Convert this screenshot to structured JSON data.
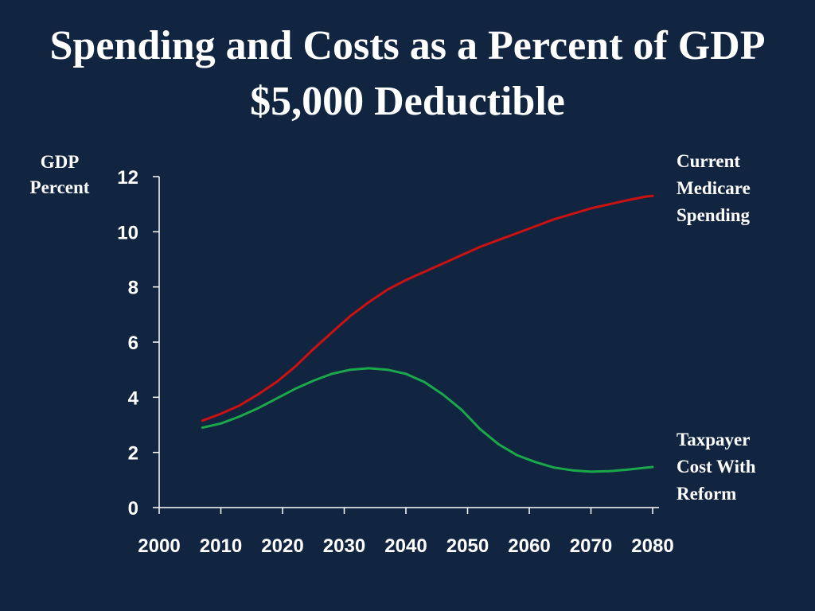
{
  "colors": {
    "background": "#112440",
    "axis": "#ffffff",
    "current": "#cc1111",
    "taxpayer": "#1aa84a"
  },
  "chart_data": {
    "type": "line",
    "title": "Spending and Costs as a Percent of GDP",
    "subtitle": "$5,000 Deductible",
    "ylabel_line1": "GDP",
    "ylabel_line2": "Percent",
    "xlabel": "",
    "xlim": [
      2000,
      2080
    ],
    "ylim": [
      0,
      12
    ],
    "x_ticks": [
      2000,
      2010,
      2020,
      2030,
      2040,
      2050,
      2060,
      2070,
      2080
    ],
    "y_ticks": [
      0,
      2,
      4,
      6,
      8,
      10,
      12
    ],
    "grid": false,
    "x": [
      2007,
      2010,
      2013,
      2016,
      2019,
      2022,
      2025,
      2028,
      2031,
      2034,
      2037,
      2040,
      2043,
      2046,
      2049,
      2052,
      2055,
      2058,
      2061,
      2064,
      2067,
      2070,
      2073,
      2076,
      2079,
      2080
    ],
    "series": [
      {
        "name": "Current Medicare Spending",
        "label_lines": [
          "Current",
          "Medicare",
          "Spending"
        ],
        "color": "#cc1111",
        "values": [
          3.15,
          3.4,
          3.7,
          4.1,
          4.55,
          5.1,
          5.75,
          6.35,
          6.95,
          7.45,
          7.9,
          8.25,
          8.55,
          8.85,
          9.15,
          9.45,
          9.7,
          9.95,
          10.2,
          10.45,
          10.65,
          10.85,
          11.0,
          11.15,
          11.28,
          11.3
        ]
      },
      {
        "name": "Taxpayer Cost With Reform",
        "label_lines": [
          "Taxpayer",
          "Cost With",
          "Reform"
        ],
        "color": "#1aa84a",
        "values": [
          2.9,
          3.05,
          3.3,
          3.6,
          3.95,
          4.3,
          4.6,
          4.85,
          5.0,
          5.05,
          5.0,
          4.85,
          4.55,
          4.1,
          3.55,
          2.85,
          2.3,
          1.9,
          1.65,
          1.45,
          1.35,
          1.3,
          1.32,
          1.38,
          1.45,
          1.47
        ]
      }
    ]
  }
}
